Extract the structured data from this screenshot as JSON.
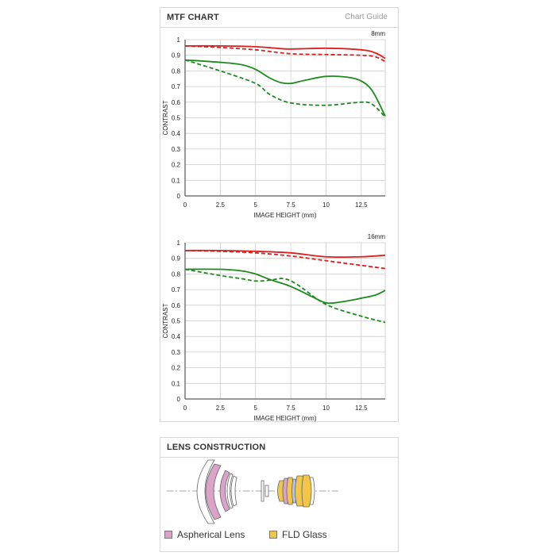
{
  "mtf_panel": {
    "title": "MTF CHART",
    "guide_link": "Chart Guide"
  },
  "lens_panel": {
    "title": "LENS CONSTRUCTION",
    "legend": [
      {
        "label": "Aspherical Lens",
        "color": "#dba3c8"
      },
      {
        "label": "FLD Glass",
        "color": "#f2c64b"
      }
    ]
  },
  "colors": {
    "red": "#dd1f1f",
    "green": "#1e8a1e",
    "grid": "#cccccc",
    "axis": "#333333"
  },
  "chart_data": [
    {
      "type": "line",
      "label": "8mm",
      "xlabel": "IMAGE HEIGHT (mm)",
      "ylabel": "CONTRAST",
      "xlim": [
        0,
        14.2
      ],
      "ylim": [
        0,
        1
      ],
      "xticks": [
        0,
        2.5,
        5,
        7.5,
        10,
        12.5
      ],
      "xtick_labels": [
        "0",
        "2.5",
        "5",
        "7.5",
        "10",
        "12.5"
      ],
      "yticks": [
        0,
        0.1,
        0.2,
        0.3,
        0.4,
        0.5,
        0.6,
        0.7,
        0.8,
        0.9,
        1
      ],
      "ytick_labels": [
        "0",
        "0.1",
        "0.2",
        "0.3",
        "0.4",
        "0.5",
        "0.6",
        "0.7",
        "0.8",
        "0.9",
        "1"
      ],
      "grid": true,
      "series": [
        {
          "color": "red",
          "dash": false,
          "x": [
            0,
            2.5,
            5,
            6.5,
            7.5,
            10,
            12.5,
            13.5,
            14.2
          ],
          "y": [
            0.96,
            0.96,
            0.955,
            0.945,
            0.94,
            0.945,
            0.935,
            0.915,
            0.88
          ]
        },
        {
          "color": "red",
          "dash": true,
          "x": [
            0,
            2.5,
            5,
            7.5,
            10,
            12.5,
            13.5,
            14.2
          ],
          "y": [
            0.96,
            0.95,
            0.935,
            0.91,
            0.905,
            0.9,
            0.89,
            0.86
          ]
        },
        {
          "color": "green",
          "dash": false,
          "x": [
            0,
            2.5,
            4,
            5,
            6,
            6.8,
            7.5,
            8.5,
            10,
            11.5,
            12.5,
            13.3,
            14.2
          ],
          "y": [
            0.87,
            0.855,
            0.84,
            0.81,
            0.755,
            0.725,
            0.72,
            0.74,
            0.765,
            0.76,
            0.735,
            0.67,
            0.51
          ]
        },
        {
          "color": "green",
          "dash": true,
          "x": [
            0,
            2.5,
            5,
            6,
            7.5,
            10,
            12.5,
            13.3,
            14.2
          ],
          "y": [
            0.87,
            0.8,
            0.72,
            0.65,
            0.595,
            0.58,
            0.6,
            0.585,
            0.505
          ]
        }
      ]
    },
    {
      "type": "line",
      "label": "16mm",
      "xlabel": "IMAGE HEIGHT (mm)",
      "ylabel": "CONTRAST",
      "xlim": [
        0,
        14.2
      ],
      "ylim": [
        0,
        1
      ],
      "xticks": [
        0,
        2.5,
        5,
        7.5,
        10,
        12.5
      ],
      "xtick_labels": [
        "0",
        "2.5",
        "5",
        "7.5",
        "10",
        "12.5"
      ],
      "yticks": [
        0,
        0.1,
        0.2,
        0.3,
        0.4,
        0.5,
        0.6,
        0.7,
        0.8,
        0.9,
        1
      ],
      "ytick_labels": [
        "0",
        "0.1",
        "0.2",
        "0.3",
        "0.4",
        "0.5",
        "0.6",
        "0.7",
        "0.8",
        "0.9",
        "1"
      ],
      "grid": true,
      "series": [
        {
          "color": "red",
          "dash": false,
          "x": [
            0,
            2.5,
            5,
            7.5,
            10,
            12.5,
            14.2
          ],
          "y": [
            0.95,
            0.95,
            0.945,
            0.935,
            0.91,
            0.91,
            0.92
          ]
        },
        {
          "color": "red",
          "dash": true,
          "x": [
            0,
            2.5,
            5,
            7.5,
            10,
            12.5,
            14.2
          ],
          "y": [
            0.95,
            0.945,
            0.935,
            0.915,
            0.885,
            0.855,
            0.835
          ]
        },
        {
          "color": "green",
          "dash": false,
          "x": [
            0,
            2.5,
            4,
            5,
            6,
            7.5,
            9,
            10,
            11,
            12.5,
            13.5,
            14.2
          ],
          "y": [
            0.83,
            0.83,
            0.82,
            0.8,
            0.765,
            0.72,
            0.655,
            0.615,
            0.62,
            0.645,
            0.665,
            0.695
          ]
        },
        {
          "color": "green",
          "dash": true,
          "x": [
            0,
            2.5,
            4,
            5,
            6,
            7,
            8,
            10,
            12.5,
            14.2
          ],
          "y": [
            0.83,
            0.79,
            0.77,
            0.755,
            0.76,
            0.77,
            0.73,
            0.605,
            0.53,
            0.49
          ]
        }
      ]
    }
  ]
}
